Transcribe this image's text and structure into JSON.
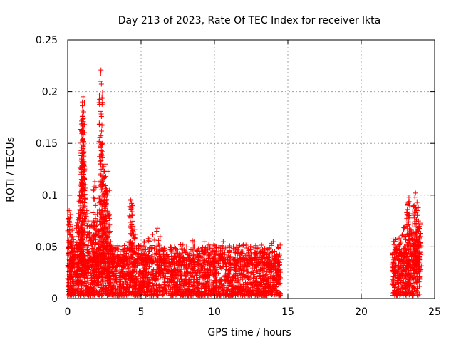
{
  "chart_data": {
    "type": "scatter",
    "title": "Day 213 of 2023, Rate Of TEC Index for receiver lkta",
    "xlabel": "GPS time / hours",
    "ylabel": "ROTI / TECUs",
    "xlim": [
      0,
      25
    ],
    "ylim": [
      0,
      0.25
    ],
    "x_ticks": [
      0,
      5,
      10,
      15,
      20,
      25
    ],
    "x_tick_labels": [
      "0",
      "5",
      "10",
      "15",
      "20",
      "25"
    ],
    "y_ticks": [
      0,
      0.05,
      0.1,
      0.15,
      0.2,
      0.25
    ],
    "y_tick_labels": [
      "0",
      "0.05",
      "0.1",
      "0.15",
      "0.2",
      "0.25"
    ],
    "grid": true,
    "marker": "+",
    "color": "#ff0000",
    "series": [
      {
        "name": "ROTI",
        "points": [
          [
            0.1,
            0.085
          ],
          [
            0.15,
            0.078
          ],
          [
            0.2,
            0.07
          ],
          [
            0.3,
            0.066
          ],
          [
            0.35,
            0.06
          ],
          [
            0.4,
            0.055
          ],
          [
            0.6,
            0.068
          ],
          [
            0.7,
            0.076
          ],
          [
            0.75,
            0.082
          ],
          [
            0.8,
            0.096
          ],
          [
            0.85,
            0.11
          ],
          [
            0.9,
            0.12
          ],
          [
            0.95,
            0.135
          ],
          [
            1.0,
            0.153
          ],
          [
            1.02,
            0.154
          ],
          [
            1.0,
            0.176
          ],
          [
            1.02,
            0.182
          ],
          [
            1.0,
            0.19
          ],
          [
            1.05,
            0.195
          ],
          [
            1.1,
            0.13
          ],
          [
            1.15,
            0.115
          ],
          [
            1.2,
            0.098
          ],
          [
            1.3,
            0.085
          ],
          [
            1.4,
            0.075
          ],
          [
            1.6,
            0.07
          ],
          [
            1.7,
            0.06
          ],
          [
            1.75,
            0.075
          ],
          [
            1.8,
            0.108
          ],
          [
            1.85,
            0.113
          ],
          [
            1.9,
            0.09
          ],
          [
            2.0,
            0.075
          ],
          [
            2.1,
            0.065
          ],
          [
            2.2,
            0.06
          ],
          [
            2.25,
            0.218
          ],
          [
            2.27,
            0.221
          ],
          [
            2.3,
            0.176
          ],
          [
            2.35,
            0.085
          ],
          [
            2.4,
            0.095
          ],
          [
            2.45,
            0.11
          ],
          [
            2.5,
            0.123
          ],
          [
            2.55,
            0.13
          ],
          [
            2.6,
            0.118
          ],
          [
            2.65,
            0.105
          ],
          [
            2.7,
            0.1
          ],
          [
            2.75,
            0.123
          ],
          [
            2.8,
            0.08
          ],
          [
            2.9,
            0.065
          ],
          [
            3.0,
            0.05
          ],
          [
            3.2,
            0.045
          ],
          [
            3.5,
            0.04
          ],
          [
            3.8,
            0.042
          ],
          [
            4.1,
            0.055
          ],
          [
            4.3,
            0.095
          ],
          [
            4.35,
            0.092
          ],
          [
            4.4,
            0.09
          ],
          [
            4.45,
            0.07
          ],
          [
            4.6,
            0.062
          ],
          [
            4.8,
            0.05
          ],
          [
            5.2,
            0.055
          ],
          [
            5.5,
            0.058
          ],
          [
            5.8,
            0.062
          ],
          [
            6.1,
            0.068
          ],
          [
            6.3,
            0.06
          ],
          [
            6.6,
            0.048
          ],
          [
            7.0,
            0.05
          ],
          [
            7.3,
            0.044
          ],
          [
            7.7,
            0.052
          ],
          [
            8.1,
            0.05
          ],
          [
            8.5,
            0.056
          ],
          [
            8.9,
            0.048
          ],
          [
            9.3,
            0.055
          ],
          [
            9.7,
            0.05
          ],
          [
            10.1,
            0.048
          ],
          [
            10.6,
            0.055
          ],
          [
            11.0,
            0.046
          ],
          [
            11.5,
            0.05
          ],
          [
            11.9,
            0.044
          ],
          [
            12.3,
            0.048
          ],
          [
            12.8,
            0.042
          ],
          [
            13.2,
            0.046
          ],
          [
            13.7,
            0.044
          ],
          [
            14.0,
            0.055
          ],
          [
            14.3,
            0.05
          ],
          [
            14.4,
            0.038
          ],
          [
            22.2,
            0.055
          ],
          [
            22.4,
            0.048
          ],
          [
            22.6,
            0.052
          ],
          [
            22.8,
            0.062
          ],
          [
            23.0,
            0.07
          ],
          [
            23.1,
            0.083
          ],
          [
            23.2,
            0.093
          ],
          [
            23.25,
            0.098
          ],
          [
            23.3,
            0.078
          ],
          [
            23.4,
            0.066
          ],
          [
            23.5,
            0.072
          ],
          [
            23.6,
            0.09
          ],
          [
            23.65,
            0.098
          ],
          [
            23.7,
            0.102
          ],
          [
            23.8,
            0.093
          ],
          [
            23.85,
            0.085
          ],
          [
            23.9,
            0.075
          ],
          [
            23.95,
            0.07
          ],
          [
            24.0,
            0.06
          ]
        ],
        "base_band": [
          {
            "x_from": 0.0,
            "x_to": 14.5,
            "y_min": 0.003,
            "y_max": 0.04,
            "density": "dense"
          },
          {
            "x_from": 22.1,
            "x_to": 24.0,
            "y_min": 0.003,
            "y_max": 0.045,
            "density": "dense"
          }
        ],
        "data_gap": [
          14.5,
          22.1
        ]
      }
    ]
  }
}
